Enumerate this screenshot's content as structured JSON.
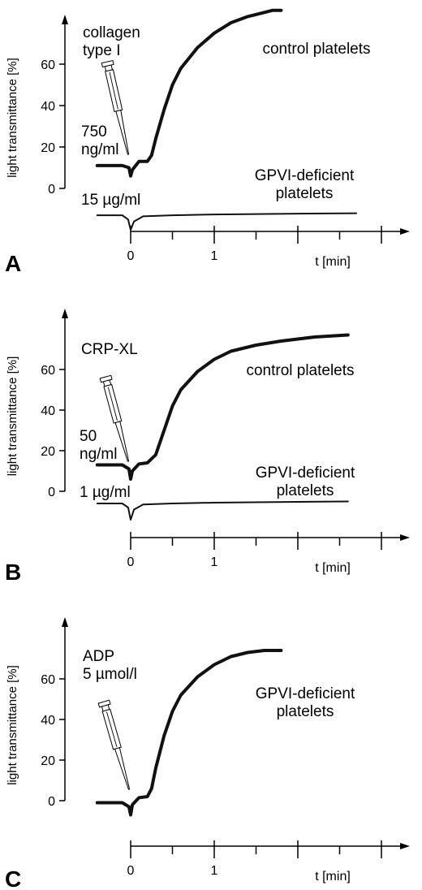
{
  "chart_data": [
    {
      "type": "line",
      "panel": "A",
      "ylabel": "light transmittance [%]",
      "yticks": [
        0,
        20,
        40,
        60
      ],
      "xlabel": "t [min]",
      "xticks": [
        0,
        1
      ],
      "xlim": [
        -0.4,
        2.8
      ],
      "ylim": [
        0,
        90
      ],
      "agonist": "collagen\ntype I",
      "series": [
        {
          "name": "control platelets",
          "dose": "750\nng/ml",
          "x": [
            -0.4,
            -0.1,
            -0.02,
            0.0,
            0.02,
            0.1,
            0.2,
            0.25,
            0.3,
            0.4,
            0.5,
            0.6,
            0.8,
            1.0,
            1.2,
            1.4,
            1.6,
            1.7,
            1.8
          ],
          "y": [
            11,
            11,
            10,
            6,
            9,
            13,
            13,
            16,
            24,
            38,
            50,
            58,
            68,
            75,
            80,
            83,
            85,
            86,
            86
          ]
        },
        {
          "name": "GPVI-deficient\nplatelets",
          "dose": "15 µg/ml",
          "x": [
            -0.4,
            -0.1,
            -0.03,
            0.0,
            0.04,
            0.15,
            0.5,
            1.0,
            2.0,
            2.7
          ],
          "y": [
            -13,
            -13,
            -15,
            -20,
            -16,
            -13.5,
            -13,
            -12.6,
            -12.2,
            -12
          ]
        }
      ]
    },
    {
      "type": "line",
      "panel": "B",
      "ylabel": "light transmittance [%]",
      "yticks": [
        0,
        20,
        40,
        60
      ],
      "xlabel": "t [min]",
      "xticks": [
        0,
        1
      ],
      "xlim": [
        -0.4,
        2.8
      ],
      "ylim": [
        0,
        80
      ],
      "agonist": "CRP-XL",
      "series": [
        {
          "name": "control platelets",
          "dose": "50\nng/ml",
          "x": [
            -0.4,
            -0.1,
            -0.02,
            0.0,
            0.02,
            0.1,
            0.2,
            0.3,
            0.4,
            0.5,
            0.6,
            0.8,
            1.0,
            1.2,
            1.5,
            1.8,
            2.2,
            2.6
          ],
          "y": [
            13,
            13,
            11,
            6,
            10,
            13.5,
            14,
            18,
            30,
            42,
            50,
            59,
            65,
            69,
            72,
            74,
            76,
            77
          ]
        },
        {
          "name": "GPVI-deficient\nplatelets",
          "dose": "1 µg/ml",
          "x": [
            -0.4,
            -0.1,
            -0.03,
            0.0,
            0.04,
            0.15,
            0.5,
            1.0,
            2.0,
            2.6
          ],
          "y": [
            -6,
            -6,
            -8,
            -14,
            -9,
            -6.5,
            -6,
            -5.6,
            -5.2,
            -5
          ]
        }
      ]
    },
    {
      "type": "line",
      "panel": "C",
      "ylabel": "light transmittance [%]",
      "yticks": [
        0,
        20,
        40,
        60
      ],
      "xlabel": "t [min]",
      "xticks": [
        0,
        1
      ],
      "xlim": [
        -0.4,
        2.8
      ],
      "ylim": [
        0,
        78
      ],
      "agonist": "ADP\n5 µmol/l",
      "series": [
        {
          "name": "GPVI-deficient\nplatelets",
          "dose": "",
          "x": [
            -0.4,
            -0.1,
            -0.02,
            0.0,
            0.02,
            0.1,
            0.2,
            0.25,
            0.3,
            0.4,
            0.5,
            0.6,
            0.8,
            1.0,
            1.2,
            1.4,
            1.6,
            1.8
          ],
          "y": [
            -1,
            -1,
            -3,
            -7,
            -2,
            1.5,
            2,
            6,
            16,
            32,
            44,
            52,
            61,
            67,
            71,
            73,
            74,
            74
          ]
        }
      ]
    }
  ]
}
